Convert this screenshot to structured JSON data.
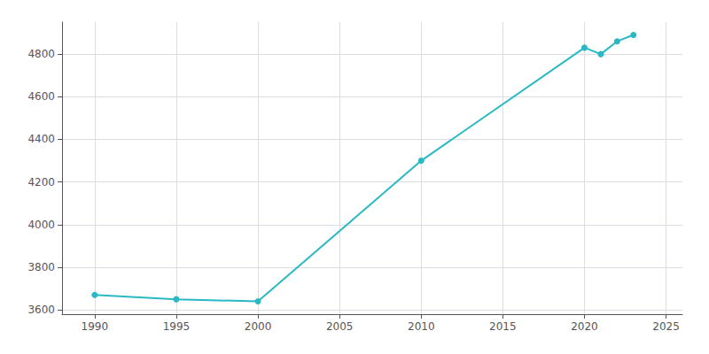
{
  "chart_data": {
    "type": "line",
    "x": [
      1990,
      1995,
      2000,
      2010,
      2020,
      2021,
      2022,
      2023
    ],
    "values": [
      3670,
      3650,
      3640,
      4300,
      4830,
      4800,
      4860,
      4890
    ],
    "color": "#29b8c4",
    "marker": "circle",
    "xlim": [
      1988,
      2026
    ],
    "ylim": [
      3580,
      4950
    ],
    "xticks": [
      1990,
      1995,
      2000,
      2005,
      2010,
      2015,
      2020,
      2025
    ],
    "yticks": [
      3600,
      3800,
      4000,
      4200,
      4400,
      4600,
      4800
    ],
    "grid": true
  }
}
